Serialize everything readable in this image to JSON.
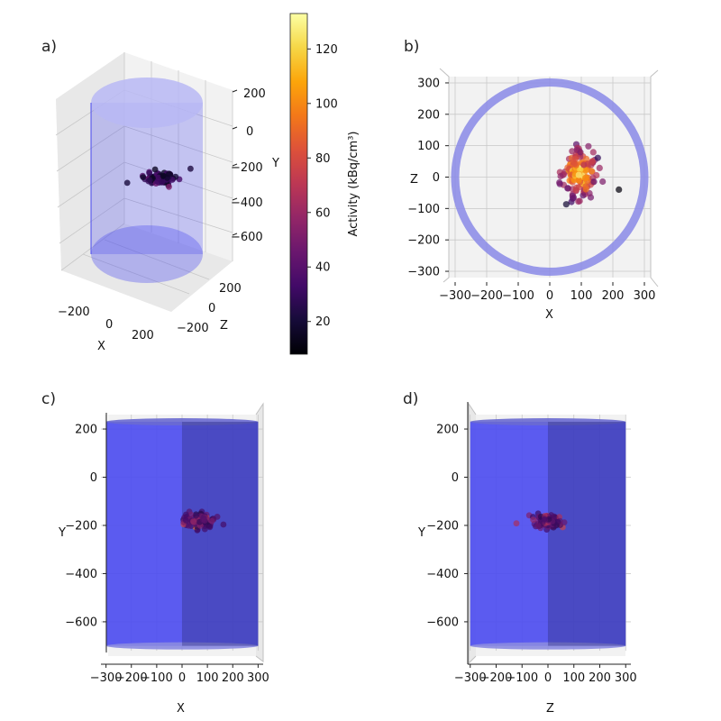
{
  "colors": {
    "cylinder": "#4a4af0",
    "ring": "#8a8ae8",
    "grid": "#c8c8c8",
    "pane": "#f2f2f2"
  },
  "chart_data": [
    {
      "panel_label": "a)",
      "type": "scatter",
      "projection": "3d-oblique",
      "xlabel": "X",
      "ylabel": "Y",
      "zlabel": "Z",
      "x_ticks": [
        "−200",
        "0",
        "200"
      ],
      "y_ticks": [
        "200",
        "0",
        "−200",
        "−400",
        "−600"
      ],
      "z_ticks": [
        "−200",
        "0",
        "200"
      ],
      "xlim": [
        -320,
        320
      ],
      "ylim": [
        -720,
        260
      ],
      "zlim": [
        -320,
        320
      ],
      "cylinder": {
        "radius": 300,
        "y_min": -700,
        "y_max": 230
      },
      "cluster": {
        "center_x": 70,
        "center_y": -180,
        "center_z": 0,
        "spread": 60
      }
    },
    {
      "panel_label": "b)",
      "type": "scatter",
      "projection": "top (X–Z)",
      "xlabel": "X",
      "ylabel": "Z",
      "x_ticks": [
        "−300",
        "−200",
        "−100",
        "0",
        "100",
        "200",
        "300"
      ],
      "y_ticks": [
        "300",
        "200",
        "100",
        "0",
        "−100",
        "−200",
        "−300"
      ],
      "xlim": [
        -320,
        320
      ],
      "ylim": [
        -320,
        320
      ],
      "ring_radius": 300,
      "cluster": {
        "center_x": 95,
        "center_z": 15,
        "spread_x": 55,
        "spread_z": 75
      }
    },
    {
      "panel_label": "c)",
      "type": "scatter",
      "projection": "front (X–Y)",
      "xlabel": "X",
      "ylabel": "Y",
      "x_ticks": [
        "−300",
        "−200",
        "−100",
        "0",
        "100",
        "200",
        "300"
      ],
      "y_ticks": [
        "200",
        "0",
        "−200",
        "−400",
        "−600"
      ],
      "xlim": [
        -320,
        320
      ],
      "ylim": [
        -720,
        260
      ],
      "cylinder": {
        "radius": 300,
        "y_min": -700,
        "y_max": 230
      },
      "cluster": {
        "center_x": 70,
        "center_y": -180,
        "spread_x": 65,
        "spread_y": 40
      }
    },
    {
      "panel_label": "d)",
      "type": "scatter",
      "projection": "side (Z–Y)",
      "xlabel": "Z",
      "ylabel": "Y",
      "x_ticks": [
        "−300",
        "−200",
        "−100",
        "0",
        "100",
        "200",
        "300"
      ],
      "y_ticks": [
        "200",
        "0",
        "−200",
        "−400",
        "−600"
      ],
      "xlim": [
        -320,
        320
      ],
      "ylim": [
        -720,
        260
      ],
      "cylinder": {
        "radius": 300,
        "y_min": -700,
        "y_max": 230
      },
      "cluster": {
        "center_z": -5,
        "center_y": -180,
        "spread_x": 65,
        "spread_y": 40
      }
    }
  ],
  "colorbar": {
    "label": "Activity (kBq/cm³)",
    "ticks": [
      "20",
      "40",
      "60",
      "80",
      "100",
      "120"
    ],
    "tick_values": [
      20,
      40,
      60,
      80,
      100,
      120
    ],
    "min": 8,
    "max": 133,
    "colormap": "inferno"
  }
}
